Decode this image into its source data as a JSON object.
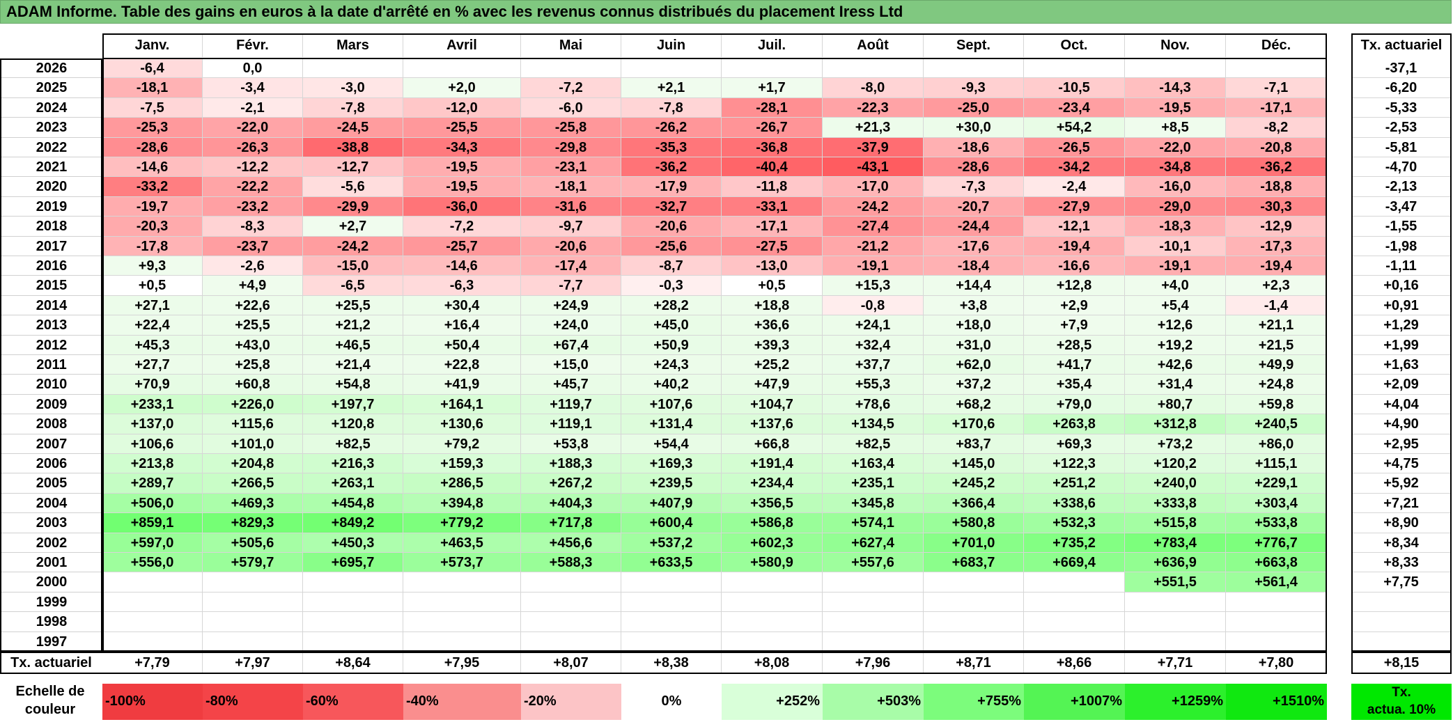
{
  "title": "ADAM Informe. Table des gains en euros à la date d'arrêté en % avec les revenus connus distribués du placement Iress Ltd",
  "months": [
    "Janv.",
    "Févr.",
    "Mars",
    "Avril",
    "Mai",
    "Juin",
    "Juil.",
    "Août",
    "Sept.",
    "Oct.",
    "Nov.",
    "Déc."
  ],
  "actuarial_header": "Tx. actuariel",
  "rows": [
    {
      "year": "2026",
      "values": [
        "-6,4",
        "0,0",
        "",
        "",
        "",
        "",
        "",
        "",
        "",
        "",
        "",
        ""
      ],
      "rate": "-37,1"
    },
    {
      "year": "2025",
      "values": [
        "-18,1",
        "-3,4",
        "-3,0",
        "+2,0",
        "-7,2",
        "+2,1",
        "+1,7",
        "-8,0",
        "-9,3",
        "-10,5",
        "-14,3",
        "-7,1"
      ],
      "rate": "-6,20"
    },
    {
      "year": "2024",
      "values": [
        "-7,5",
        "-2,1",
        "-7,8",
        "-12,0",
        "-6,0",
        "-7,8",
        "-28,1",
        "-22,3",
        "-25,0",
        "-23,4",
        "-19,5",
        "-17,1"
      ],
      "rate": "-5,33"
    },
    {
      "year": "2023",
      "values": [
        "-25,3",
        "-22,0",
        "-24,5",
        "-25,5",
        "-25,8",
        "-26,2",
        "-26,7",
        "+21,3",
        "+30,0",
        "+54,2",
        "+8,5",
        "-8,2"
      ],
      "rate": "-2,53"
    },
    {
      "year": "2022",
      "values": [
        "-28,6",
        "-26,3",
        "-38,8",
        "-34,3",
        "-29,8",
        "-35,3",
        "-36,8",
        "-37,9",
        "-18,6",
        "-26,5",
        "-22,0",
        "-20,8"
      ],
      "rate": "-5,81"
    },
    {
      "year": "2021",
      "values": [
        "-14,6",
        "-12,2",
        "-12,7",
        "-19,5",
        "-23,1",
        "-36,2",
        "-40,4",
        "-43,1",
        "-28,6",
        "-34,2",
        "-34,8",
        "-36,2"
      ],
      "rate": "-4,70"
    },
    {
      "year": "2020",
      "values": [
        "-33,2",
        "-22,2",
        "-5,6",
        "-19,5",
        "-18,1",
        "-17,9",
        "-11,8",
        "-17,0",
        "-7,3",
        "-2,4",
        "-16,0",
        "-18,8"
      ],
      "rate": "-2,13"
    },
    {
      "year": "2019",
      "values": [
        "-19,7",
        "-23,2",
        "-29,9",
        "-36,0",
        "-31,6",
        "-32,7",
        "-33,1",
        "-24,2",
        "-20,7",
        "-27,9",
        "-29,0",
        "-30,3"
      ],
      "rate": "-3,47"
    },
    {
      "year": "2018",
      "values": [
        "-20,3",
        "-8,3",
        "+2,7",
        "-7,2",
        "-9,7",
        "-20,6",
        "-17,1",
        "-27,4",
        "-24,4",
        "-12,1",
        "-18,3",
        "-12,9"
      ],
      "rate": "-1,55"
    },
    {
      "year": "2017",
      "values": [
        "-17,8",
        "-23,7",
        "-24,2",
        "-25,7",
        "-20,6",
        "-25,6",
        "-27,5",
        "-21,2",
        "-17,6",
        "-19,4",
        "-10,1",
        "-17,3"
      ],
      "rate": "-1,98"
    },
    {
      "year": "2016",
      "values": [
        "+9,3",
        "-2,6",
        "-15,0",
        "-14,6",
        "-17,4",
        "-8,7",
        "-13,0",
        "-19,1",
        "-18,4",
        "-16,6",
        "-19,1",
        "-19,4"
      ],
      "rate": "-1,11"
    },
    {
      "year": "2015",
      "values": [
        "+0,5",
        "+4,9",
        "-6,5",
        "-6,3",
        "-7,7",
        "-0,3",
        "+0,5",
        "+15,3",
        "+14,4",
        "+12,8",
        "+4,0",
        "+2,3"
      ],
      "rate": "+0,16"
    },
    {
      "year": "2014",
      "values": [
        "+27,1",
        "+22,6",
        "+25,5",
        "+30,4",
        "+24,9",
        "+28,2",
        "+18,8",
        "-0,8",
        "+3,8",
        "+2,9",
        "+5,4",
        "-1,4"
      ],
      "rate": "+0,91"
    },
    {
      "year": "2013",
      "values": [
        "+22,4",
        "+25,5",
        "+21,2",
        "+16,4",
        "+24,0",
        "+45,0",
        "+36,6",
        "+24,1",
        "+18,0",
        "+7,9",
        "+12,6",
        "+21,1"
      ],
      "rate": "+1,29"
    },
    {
      "year": "2012",
      "values": [
        "+45,3",
        "+43,0",
        "+46,5",
        "+50,4",
        "+67,4",
        "+50,9",
        "+39,3",
        "+32,4",
        "+31,0",
        "+28,5",
        "+19,2",
        "+21,5"
      ],
      "rate": "+1,99"
    },
    {
      "year": "2011",
      "values": [
        "+27,7",
        "+25,8",
        "+21,4",
        "+22,8",
        "+15,0",
        "+24,3",
        "+25,2",
        "+37,7",
        "+62,0",
        "+41,7",
        "+42,6",
        "+49,9"
      ],
      "rate": "+1,63"
    },
    {
      "year": "2010",
      "values": [
        "+70,9",
        "+60,8",
        "+54,8",
        "+41,9",
        "+45,7",
        "+40,2",
        "+47,9",
        "+55,3",
        "+37,2",
        "+35,4",
        "+31,4",
        "+24,8"
      ],
      "rate": "+2,09"
    },
    {
      "year": "2009",
      "values": [
        "+233,1",
        "+226,0",
        "+197,7",
        "+164,1",
        "+119,7",
        "+107,6",
        "+104,7",
        "+78,6",
        "+68,2",
        "+79,0",
        "+80,7",
        "+59,8"
      ],
      "rate": "+4,04"
    },
    {
      "year": "2008",
      "values": [
        "+137,0",
        "+115,6",
        "+120,8",
        "+130,6",
        "+119,1",
        "+131,4",
        "+137,6",
        "+134,5",
        "+170,6",
        "+263,8",
        "+312,8",
        "+240,5"
      ],
      "rate": "+4,90"
    },
    {
      "year": "2007",
      "values": [
        "+106,6",
        "+101,0",
        "+82,5",
        "+79,2",
        "+53,8",
        "+54,4",
        "+66,8",
        "+82,5",
        "+83,7",
        "+69,3",
        "+73,2",
        "+86,0"
      ],
      "rate": "+2,95"
    },
    {
      "year": "2006",
      "values": [
        "+213,8",
        "+204,8",
        "+216,3",
        "+159,3",
        "+188,3",
        "+169,3",
        "+191,4",
        "+163,4",
        "+145,0",
        "+122,3",
        "+120,2",
        "+115,1"
      ],
      "rate": "+4,75"
    },
    {
      "year": "2005",
      "values": [
        "+289,7",
        "+266,5",
        "+263,1",
        "+286,5",
        "+267,2",
        "+239,5",
        "+234,4",
        "+235,1",
        "+245,2",
        "+251,2",
        "+240,0",
        "+229,1"
      ],
      "rate": "+5,92"
    },
    {
      "year": "2004",
      "values": [
        "+506,0",
        "+469,3",
        "+454,8",
        "+394,8",
        "+404,3",
        "+407,9",
        "+356,5",
        "+345,8",
        "+366,4",
        "+338,6",
        "+333,8",
        "+303,4"
      ],
      "rate": "+7,21"
    },
    {
      "year": "2003",
      "values": [
        "+859,1",
        "+829,3",
        "+849,2",
        "+779,2",
        "+717,8",
        "+600,4",
        "+586,8",
        "+574,1",
        "+580,8",
        "+532,3",
        "+515,8",
        "+533,8"
      ],
      "rate": "+8,90"
    },
    {
      "year": "2002",
      "values": [
        "+597,0",
        "+505,6",
        "+450,3",
        "+463,5",
        "+456,6",
        "+537,2",
        "+602,3",
        "+627,4",
        "+701,0",
        "+735,2",
        "+783,4",
        "+776,7"
      ],
      "rate": "+8,34"
    },
    {
      "year": "2001",
      "values": [
        "+556,0",
        "+579,7",
        "+695,7",
        "+573,7",
        "+588,3",
        "+633,5",
        "+580,9",
        "+557,6",
        "+683,7",
        "+669,4",
        "+636,9",
        "+663,8"
      ],
      "rate": "+8,33"
    },
    {
      "year": "2000",
      "values": [
        "",
        "",
        "",
        "",
        "",
        "",
        "",
        "",
        "",
        "",
        "+551,5",
        "+561,4"
      ],
      "rate": "+7,75"
    },
    {
      "year": "1999",
      "values": [
        "",
        "",
        "",
        "",
        "",
        "",
        "",
        "",
        "",
        "",
        "",
        ""
      ],
      "rate": ""
    },
    {
      "year": "1998",
      "values": [
        "",
        "",
        "",
        "",
        "",
        "",
        "",
        "",
        "",
        "",
        "",
        ""
      ],
      "rate": ""
    },
    {
      "year": "1997",
      "values": [
        "",
        "",
        "",
        "",
        "",
        "",
        "",
        "",
        "",
        "",
        "",
        ""
      ],
      "rate": ""
    }
  ],
  "footer": {
    "label": "Tx. actuariel",
    "values": [
      "+7,79",
      "+7,97",
      "+8,64",
      "+7,95",
      "+8,07",
      "+8,38",
      "+8,08",
      "+7,96",
      "+8,71",
      "+8,66",
      "+7,71",
      "+7,80"
    ],
    "rate": "+8,15"
  },
  "scale": {
    "label_line1": "Echelle de",
    "label_line2": "couleur",
    "steps": [
      {
        "text": "-100%",
        "color": "#f03c40",
        "align": "left"
      },
      {
        "text": "-80%",
        "color": "#f44448",
        "align": "left"
      },
      {
        "text": "-60%",
        "color": "#f7575b",
        "align": "left"
      },
      {
        "text": "-40%",
        "color": "#fa8e8e",
        "align": "left"
      },
      {
        "text": "-20%",
        "color": "#fcc4c6",
        "align": "left"
      },
      {
        "text": "0%",
        "color": "#ffffff",
        "align": "center"
      },
      {
        "text": "+252%",
        "color": "#d9ffd9",
        "align": "right"
      },
      {
        "text": "+503%",
        "color": "#a8fca8",
        "align": "right"
      },
      {
        "text": "+755%",
        "color": "#7cfc7c",
        "align": "right"
      },
      {
        "text": "+1007%",
        "color": "#54f454",
        "align": "right"
      },
      {
        "text": "+1259%",
        "color": "#2cf02c",
        "align": "right"
      },
      {
        "text": "+1510%",
        "color": "#10e810",
        "align": "right"
      }
    ],
    "actua_line1": "Tx.",
    "actua_line2": "actua. 10%"
  }
}
